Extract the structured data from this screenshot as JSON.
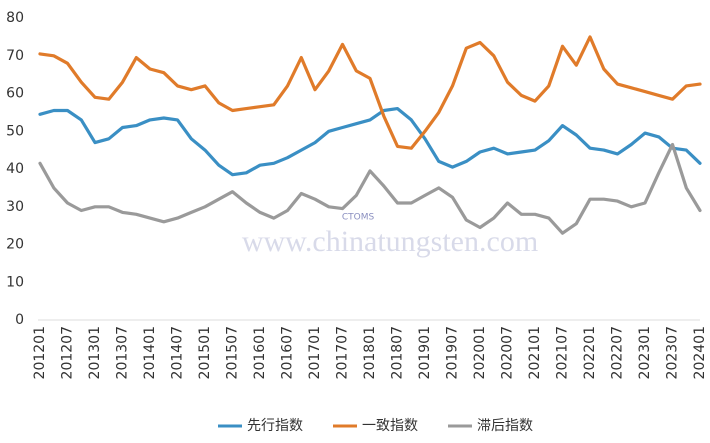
{
  "chart_data": {
    "type": "line",
    "watermark": "www.chinatungsten.com",
    "watermark_logo": "CTOMS",
    "categories": [
      "201201",
      null,
      "201207",
      null,
      "201301",
      null,
      "201307",
      null,
      "201401",
      null,
      "201407",
      null,
      "201501",
      null,
      "201507",
      null,
      "201601",
      null,
      "201607",
      null,
      "201701",
      null,
      "201707",
      null,
      "201801",
      null,
      "201807",
      null,
      "201901",
      null,
      "201907",
      null,
      "202001",
      null,
      "202007",
      null,
      "202101",
      null,
      "202107",
      null,
      "202201",
      null,
      "202207",
      null,
      "202301",
      null,
      "202307",
      null,
      "202401"
    ],
    "series": [
      {
        "name": "先行指数",
        "color": "#3a8fc4",
        "values": [
          54.5,
          55.5,
          55.5,
          53,
          47,
          48,
          51,
          51.5,
          53,
          53.5,
          53,
          48,
          45,
          41,
          38.5,
          39,
          41,
          41.5,
          43,
          45,
          47,
          50,
          51,
          52,
          53,
          55.5,
          56,
          53,
          48,
          42,
          40.5,
          42,
          44.5,
          45.5,
          44,
          44.5,
          45,
          47.5,
          51.5,
          49,
          45.5,
          45,
          44,
          46.5,
          49.5,
          48.5,
          45.5,
          45,
          41.5
        ]
      },
      {
        "name": "一致指数",
        "color": "#e07b2a",
        "values": [
          70.5,
          70,
          68,
          63,
          59,
          58.5,
          63,
          69.5,
          66.5,
          65.5,
          62,
          61,
          62,
          57.5,
          55.5,
          56,
          56.5,
          57,
          62,
          69.5,
          61,
          66,
          73,
          66,
          64,
          54,
          46,
          45.5,
          50,
          55,
          62,
          72,
          73.5,
          70,
          63,
          59.5,
          58,
          62,
          72.5,
          67.5,
          75,
          66.5,
          62.5,
          61.5,
          60.5,
          59.5,
          58.5,
          62,
          62.5
        ]
      },
      {
        "name": "滞后指数",
        "color": "#9a9a9a",
        "values": [
          41.5,
          35,
          31,
          29,
          30,
          30,
          28.5,
          28,
          27,
          26,
          27,
          28.5,
          30,
          32,
          34,
          31,
          28.5,
          27,
          29,
          33.5,
          32,
          30,
          29.5,
          33,
          39.5,
          35.5,
          31,
          31,
          33,
          35,
          32.5,
          26.5,
          24.5,
          27,
          31,
          28,
          28,
          27,
          23,
          25.5,
          32,
          32,
          31.5,
          30,
          31,
          39,
          46.5,
          35,
          29
        ]
      }
    ],
    "ylim": [
      0,
      80
    ],
    "yticks": [
      0,
      10,
      20,
      30,
      40,
      50,
      60,
      70,
      80
    ],
    "grid": false
  }
}
